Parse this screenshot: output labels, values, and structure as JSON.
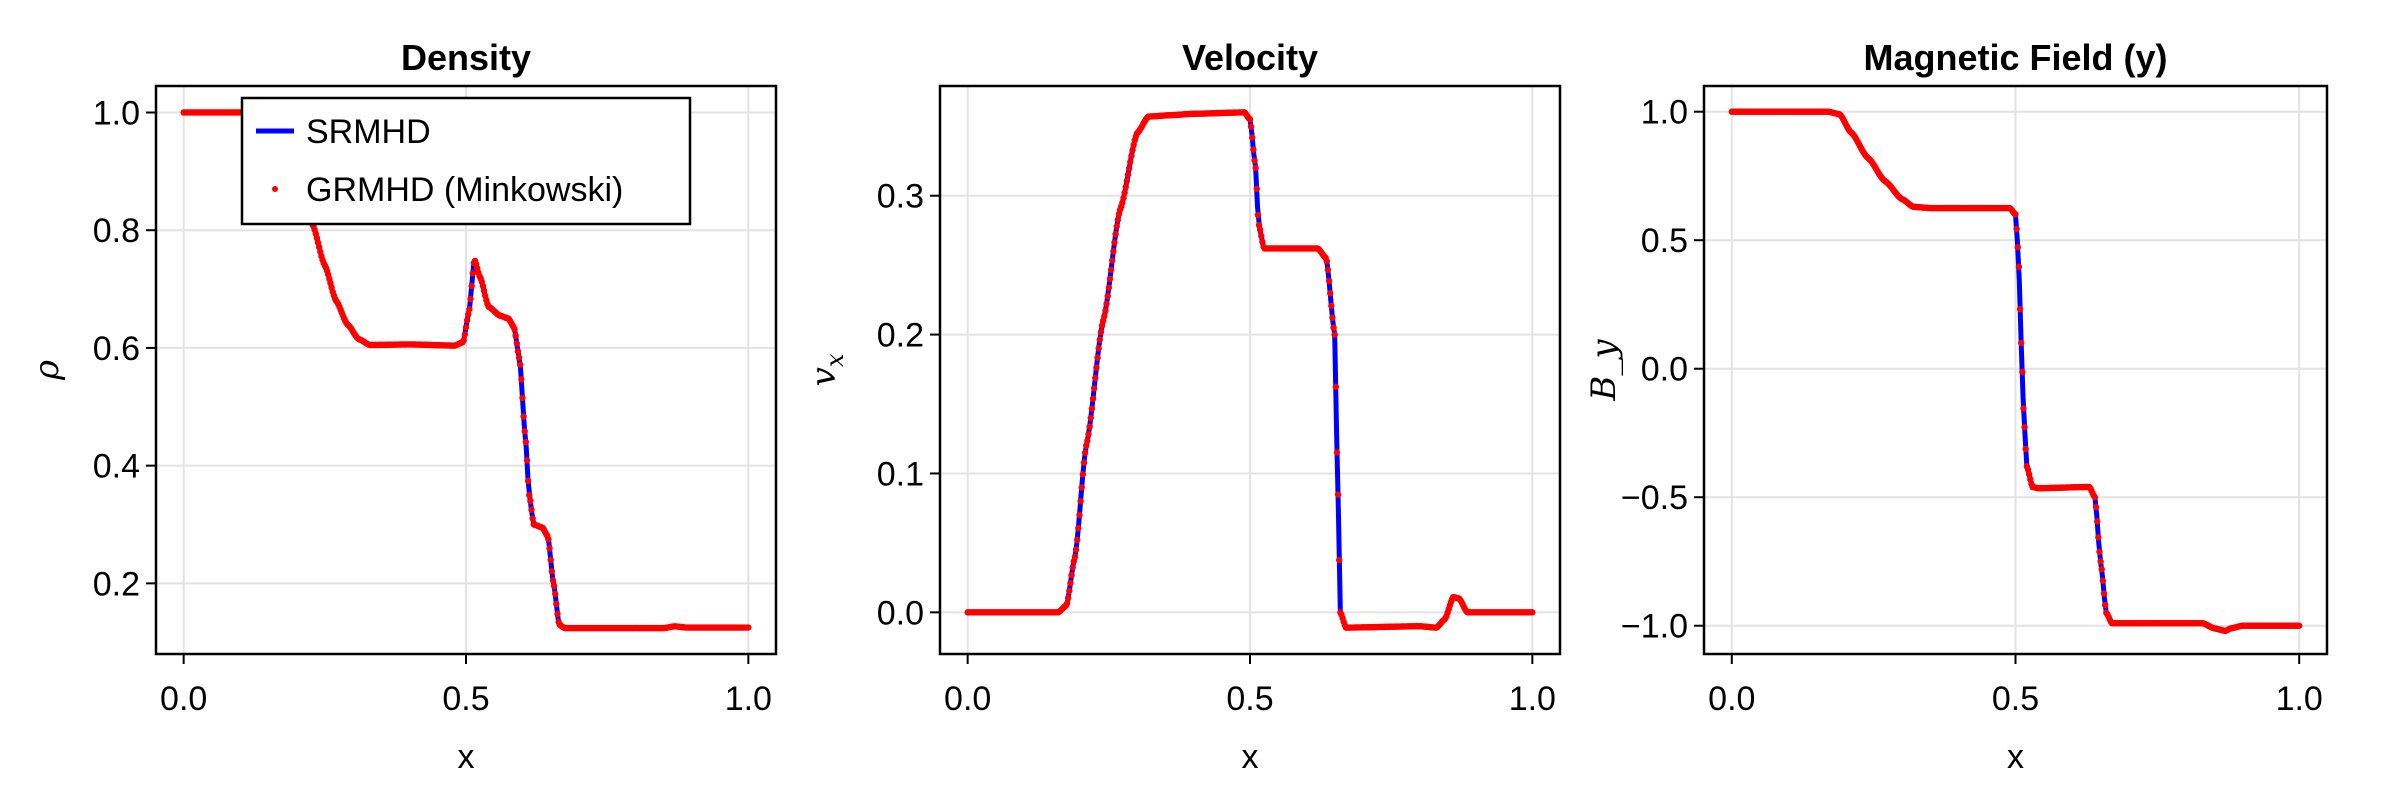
{
  "chart_data": [
    {
      "type": "line",
      "title": "Density",
      "xlabel": "x",
      "ylabel": "ρ",
      "xlim": [
        -0.049,
        1.049
      ],
      "ylim": [
        0.08,
        1.045
      ],
      "xticks": [
        "0.0",
        "0.5",
        "1.0"
      ],
      "xtick_values": [
        0,
        0.5,
        1
      ],
      "yticks": [
        "0.2",
        "0.4",
        "0.6",
        "0.8",
        "1.0"
      ],
      "ytick_values": [
        0.2,
        0.4,
        0.6,
        0.8,
        1.0
      ],
      "grid": true,
      "legend": {
        "placement": "top-left",
        "entries": [
          "SRMHD",
          "GRMHD (Minkowski)"
        ]
      },
      "x": [
        0,
        0.19,
        0.205,
        0.228,
        0.25,
        0.27,
        0.29,
        0.31,
        0.33,
        0.4,
        0.48,
        0.495,
        0.505,
        0.515,
        0.525,
        0.54,
        0.56,
        0.575,
        0.585,
        0.595,
        0.605,
        0.612,
        0.62,
        0.635,
        0.645,
        0.655,
        0.665,
        0.675,
        0.85,
        0.87,
        0.89,
        1.0
      ],
      "y": [
        1.0,
        1.0,
        0.93,
        0.81,
        0.74,
        0.68,
        0.64,
        0.615,
        0.605,
        0.606,
        0.604,
        0.61,
        0.66,
        0.75,
        0.72,
        0.67,
        0.655,
        0.65,
        0.635,
        0.58,
        0.45,
        0.35,
        0.3,
        0.295,
        0.28,
        0.2,
        0.13,
        0.124,
        0.124,
        0.127,
        0.125,
        0.125
      ]
    },
    {
      "type": "line",
      "title": "Velocity",
      "xlabel": "x",
      "ylabel": "v_x",
      "xlim": [
        -0.049,
        1.049
      ],
      "ylim": [
        -0.03,
        0.379
      ],
      "xticks": [
        "0.0",
        "0.5",
        "1.0"
      ],
      "xtick_values": [
        0,
        0.5,
        1
      ],
      "yticks": [
        "0.0",
        "0.1",
        "0.2",
        "0.3"
      ],
      "ytick_values": [
        0,
        0.1,
        0.2,
        0.3
      ],
      "grid": true,
      "x": [
        0,
        0.16,
        0.175,
        0.19,
        0.21,
        0.24,
        0.27,
        0.3,
        0.32,
        0.36,
        0.4,
        0.49,
        0.5,
        0.51,
        0.515,
        0.525,
        0.62,
        0.635,
        0.65,
        0.655,
        0.66,
        0.67,
        0.8,
        0.83,
        0.845,
        0.86,
        0.87,
        0.885,
        1.0
      ],
      "y": [
        0,
        0,
        0.005,
        0.04,
        0.12,
        0.21,
        0.29,
        0.345,
        0.357,
        0.358,
        0.359,
        0.36,
        0.355,
        0.32,
        0.28,
        0.262,
        0.262,
        0.255,
        0.2,
        0.1,
        0.0,
        -0.011,
        -0.01,
        -0.011,
        -0.005,
        0.011,
        0.01,
        0.0,
        0.0
      ]
    },
    {
      "type": "line",
      "title": "Magnetic Field (y)",
      "xlabel": "x",
      "ylabel": "B_y",
      "xlim": [
        -0.049,
        1.049
      ],
      "ylim": [
        -1.11,
        1.1
      ],
      "xticks": [
        "0.0",
        "0.5",
        "1.0"
      ],
      "xtick_values": [
        0,
        0.5,
        1
      ],
      "yticks": [
        "−1.0",
        "−0.5",
        "0.0",
        "0.5",
        "1.0"
      ],
      "ytick_values": [
        -1,
        -0.5,
        0,
        0.5,
        1
      ],
      "grid": true,
      "x": [
        0,
        0.17,
        0.19,
        0.21,
        0.24,
        0.27,
        0.3,
        0.32,
        0.35,
        0.49,
        0.5,
        0.505,
        0.51,
        0.515,
        0.52,
        0.53,
        0.54,
        0.63,
        0.64,
        0.65,
        0.66,
        0.67,
        0.75,
        0.83,
        0.85,
        0.87,
        0.88,
        0.9,
        1.0
      ],
      "y": [
        1,
        1,
        0.99,
        0.92,
        0.82,
        0.73,
        0.66,
        0.63,
        0.625,
        0.625,
        0.6,
        0.45,
        0.1,
        -0.2,
        -0.38,
        -0.46,
        -0.465,
        -0.46,
        -0.5,
        -0.75,
        -0.95,
        -0.99,
        -0.99,
        -0.99,
        -1.01,
        -1.02,
        -1.01,
        -1.0,
        -1.0
      ]
    }
  ],
  "series_colors": {
    "SRMHD": "#0000ff",
    "GRMHD (Minkowski)": "#ff0000"
  }
}
